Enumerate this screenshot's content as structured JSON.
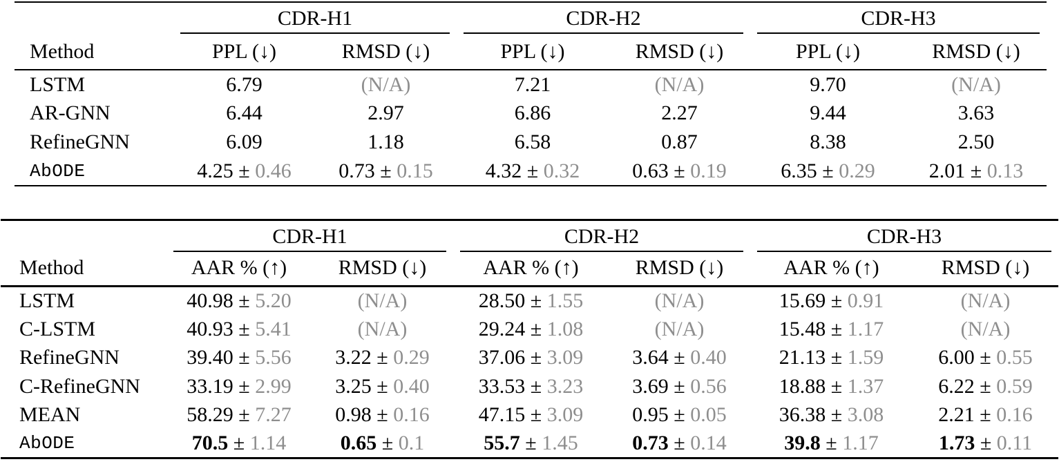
{
  "page": {
    "background": "#ffffff",
    "text_color": "#000000",
    "muted_color": "#8e8e8e"
  },
  "tables": [
    {
      "name": "cdr-ppl-rmsd-table",
      "method_header": "Method",
      "na_text": "(N/A)",
      "plus_minus": "±",
      "groups": [
        {
          "label": "CDR-H1",
          "columns": [
            "PPL (↓)",
            "RMSD (↓)"
          ]
        },
        {
          "label": "CDR-H2",
          "columns": [
            "PPL (↓)",
            "RMSD (↓)"
          ]
        },
        {
          "label": "CDR-H3",
          "columns": [
            "PPL (↓)",
            "RMSD (↓)"
          ]
        }
      ],
      "rows": [
        {
          "method": "LSTM",
          "mono": false,
          "cells": [
            {
              "main": "6.79"
            },
            {
              "na": true
            },
            {
              "main": "7.21"
            },
            {
              "na": true
            },
            {
              "main": "9.70"
            },
            {
              "na": true
            }
          ]
        },
        {
          "method": "AR-GNN",
          "mono": false,
          "cells": [
            {
              "main": "6.44"
            },
            {
              "main": "2.97"
            },
            {
              "main": "6.86"
            },
            {
              "main": "2.27"
            },
            {
              "main": "9.44"
            },
            {
              "main": "3.63"
            }
          ]
        },
        {
          "method": "RefineGNN",
          "mono": false,
          "cells": [
            {
              "main": "6.09"
            },
            {
              "main": "1.18"
            },
            {
              "main": "6.58"
            },
            {
              "main": "0.87"
            },
            {
              "main": "8.38"
            },
            {
              "main": "2.50"
            }
          ]
        },
        {
          "method": "AbODE",
          "mono": true,
          "cells": [
            {
              "main": "4.25",
              "std": "0.46"
            },
            {
              "main": "0.73",
              "std": "0.15"
            },
            {
              "main": "4.32",
              "std": "0.32"
            },
            {
              "main": "0.63",
              "std": "0.19"
            },
            {
              "main": "6.35",
              "std": "0.29"
            },
            {
              "main": "2.01",
              "std": "0.13"
            }
          ]
        }
      ]
    },
    {
      "name": "cdr-aar-rmsd-table",
      "method_header": "Method",
      "na_text": "(N/A)",
      "plus_minus": "±",
      "groups": [
        {
          "label": "CDR-H1",
          "columns": [
            "AAR % (↑)",
            "RMSD (↓)"
          ]
        },
        {
          "label": "CDR-H2",
          "columns": [
            "AAR % (↑)",
            "RMSD (↓)"
          ]
        },
        {
          "label": "CDR-H3",
          "columns": [
            "AAR % (↑)",
            "RMSD (↓)"
          ]
        }
      ],
      "rows": [
        {
          "method": "LSTM",
          "mono": false,
          "cells": [
            {
              "main": "40.98",
              "std": "5.20"
            },
            {
              "na": true
            },
            {
              "main": "28.50",
              "std": "1.55"
            },
            {
              "na": true
            },
            {
              "main": "15.69",
              "std": "0.91"
            },
            {
              "na": true
            }
          ]
        },
        {
          "method": "C-LSTM",
          "mono": false,
          "cells": [
            {
              "main": "40.93",
              "std": "5.41"
            },
            {
              "na": true
            },
            {
              "main": "29.24",
              "std": "1.08"
            },
            {
              "na": true
            },
            {
              "main": "15.48",
              "std": "1.17"
            },
            {
              "na": true
            }
          ]
        },
        {
          "method": "RefineGNN",
          "mono": false,
          "cells": [
            {
              "main": "39.40",
              "std": "5.56"
            },
            {
              "main": "3.22",
              "std": "0.29"
            },
            {
              "main": "37.06",
              "std": "3.09"
            },
            {
              "main": "3.64",
              "std": "0.40"
            },
            {
              "main": "21.13",
              "std": "1.59"
            },
            {
              "main": "6.00",
              "std": "0.55"
            }
          ]
        },
        {
          "method": "C-RefineGNN",
          "mono": false,
          "cells": [
            {
              "main": "33.19",
              "std": "2.99"
            },
            {
              "main": "3.25",
              "std": "0.40"
            },
            {
              "main": "33.53",
              "std": "3.23"
            },
            {
              "main": "3.69",
              "std": "0.56"
            },
            {
              "main": "18.88",
              "std": "1.37"
            },
            {
              "main": "6.22",
              "std": "0.59"
            }
          ]
        },
        {
          "method": "MEAN",
          "mono": false,
          "cells": [
            {
              "main": "58.29",
              "std": "7.27"
            },
            {
              "main": "0.98",
              "std": "0.16"
            },
            {
              "main": "47.15",
              "std": "3.09"
            },
            {
              "main": "0.95",
              "std": "0.05"
            },
            {
              "main": "36.38",
              "std": "3.08"
            },
            {
              "main": "2.21",
              "std": "0.16"
            }
          ]
        },
        {
          "method": "AbODE",
          "mono": true,
          "cells": [
            {
              "main": "70.5",
              "std": "1.14",
              "bold": true
            },
            {
              "main": "0.65",
              "std": "0.1",
              "bold": true
            },
            {
              "main": "55.7",
              "std": "1.45",
              "bold": true
            },
            {
              "main": "0.73",
              "std": "0.14",
              "bold": true
            },
            {
              "main": "39.8",
              "std": "1.17",
              "bold": true
            },
            {
              "main": "1.73",
              "std": "0.11",
              "bold": true
            }
          ]
        }
      ]
    }
  ]
}
